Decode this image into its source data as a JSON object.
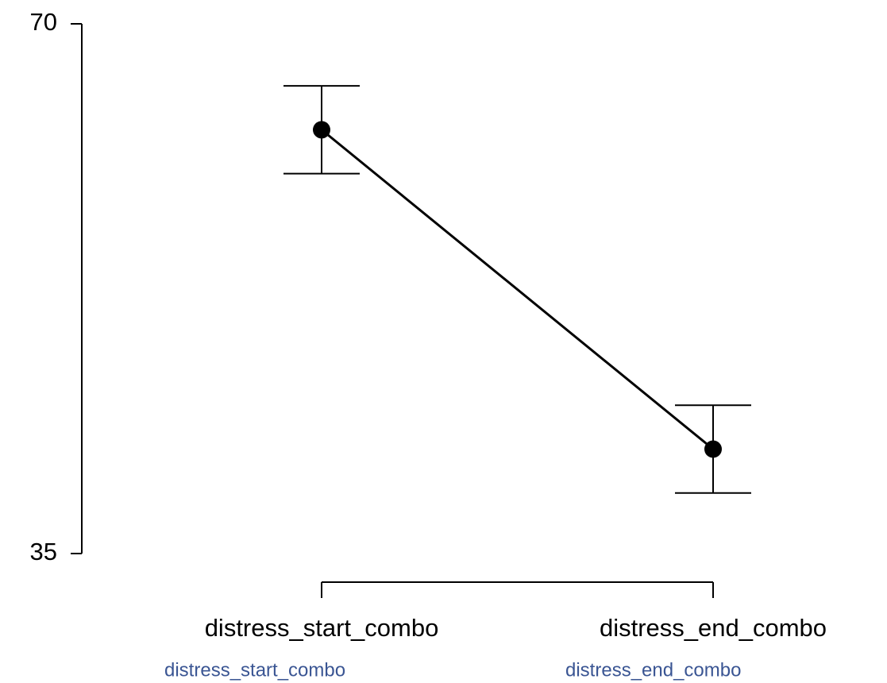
{
  "chart_data": {
    "type": "line",
    "categories": [
      "distress_start_combo",
      "distress_end_combo"
    ],
    "values": [
      63.0,
      41.9
    ],
    "error": [
      2.9,
      2.9
    ],
    "color": "#000000",
    "ylim": [
      35,
      70
    ],
    "yticks": [
      35,
      70
    ],
    "grid": false,
    "annotations": [
      "distress_start_combo",
      "distress_end_combo"
    ]
  }
}
